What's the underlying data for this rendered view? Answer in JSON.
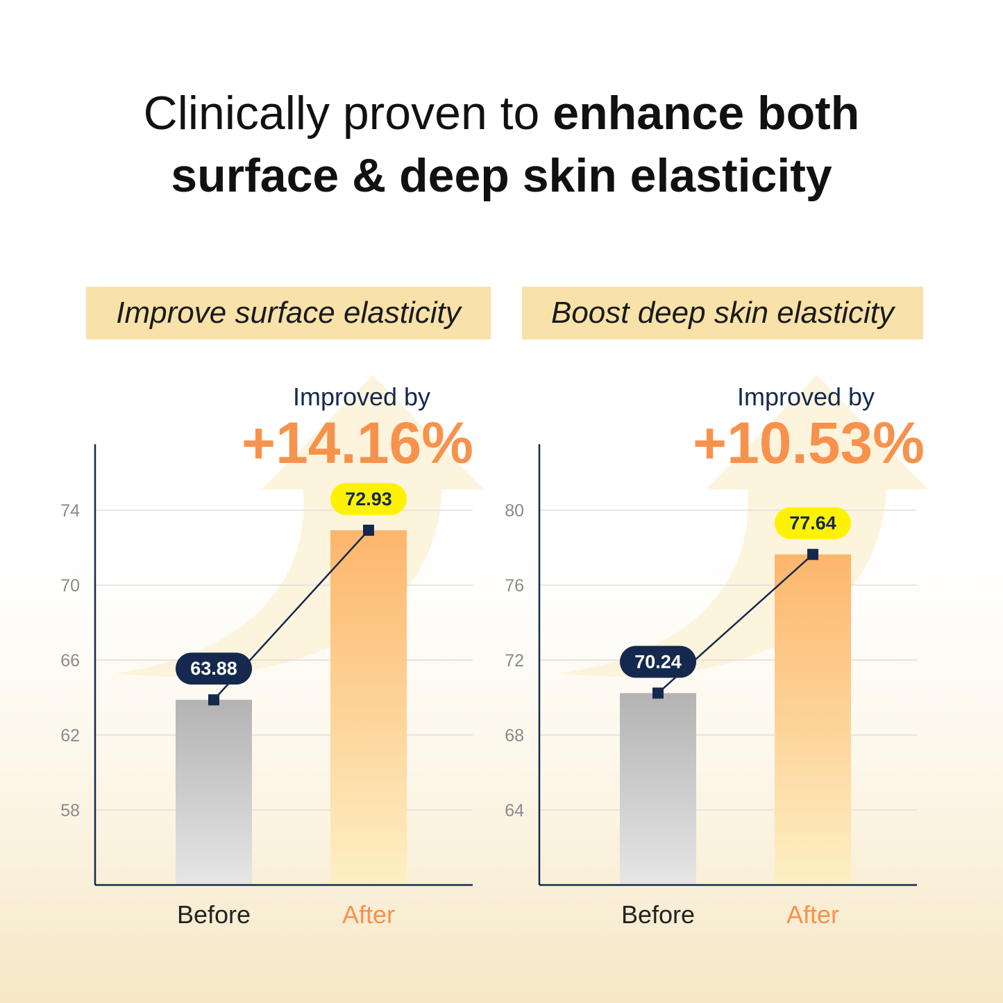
{
  "heading": {
    "line1_regular": "Clinically proven to ",
    "line1_bold": "enhance both",
    "line2_bold": "surface & deep skin elasticity"
  },
  "colors": {
    "after_accent": "#f7924d",
    "before_label_bg": "#14294d",
    "after_label_bg": "#fff200",
    "header_box": "#f8e2a9"
  },
  "chart_data": [
    {
      "type": "bar",
      "title": "Improve surface elasticity",
      "annotation_label": "Improved by",
      "annotation_value": "+14.16%",
      "categories": [
        "Before",
        "After"
      ],
      "values": [
        63.88,
        72.93
      ],
      "value_labels": [
        "63.88",
        "72.93"
      ],
      "yticks": [
        "74",
        "70",
        "66",
        "62",
        "58"
      ],
      "ylim": [
        54,
        77.5
      ],
      "grid": true,
      "connecting_line": true
    },
    {
      "type": "bar",
      "title": "Boost deep skin elasticity",
      "annotation_label": "Improved by",
      "annotation_value": "+10.53%",
      "categories": [
        "Before",
        "After"
      ],
      "values": [
        70.24,
        77.64
      ],
      "value_labels": [
        "70.24",
        "77.64"
      ],
      "yticks": [
        "80",
        "76",
        "72",
        "68",
        "64"
      ],
      "ylim": [
        60,
        83.5
      ],
      "grid": true,
      "connecting_line": true
    }
  ]
}
